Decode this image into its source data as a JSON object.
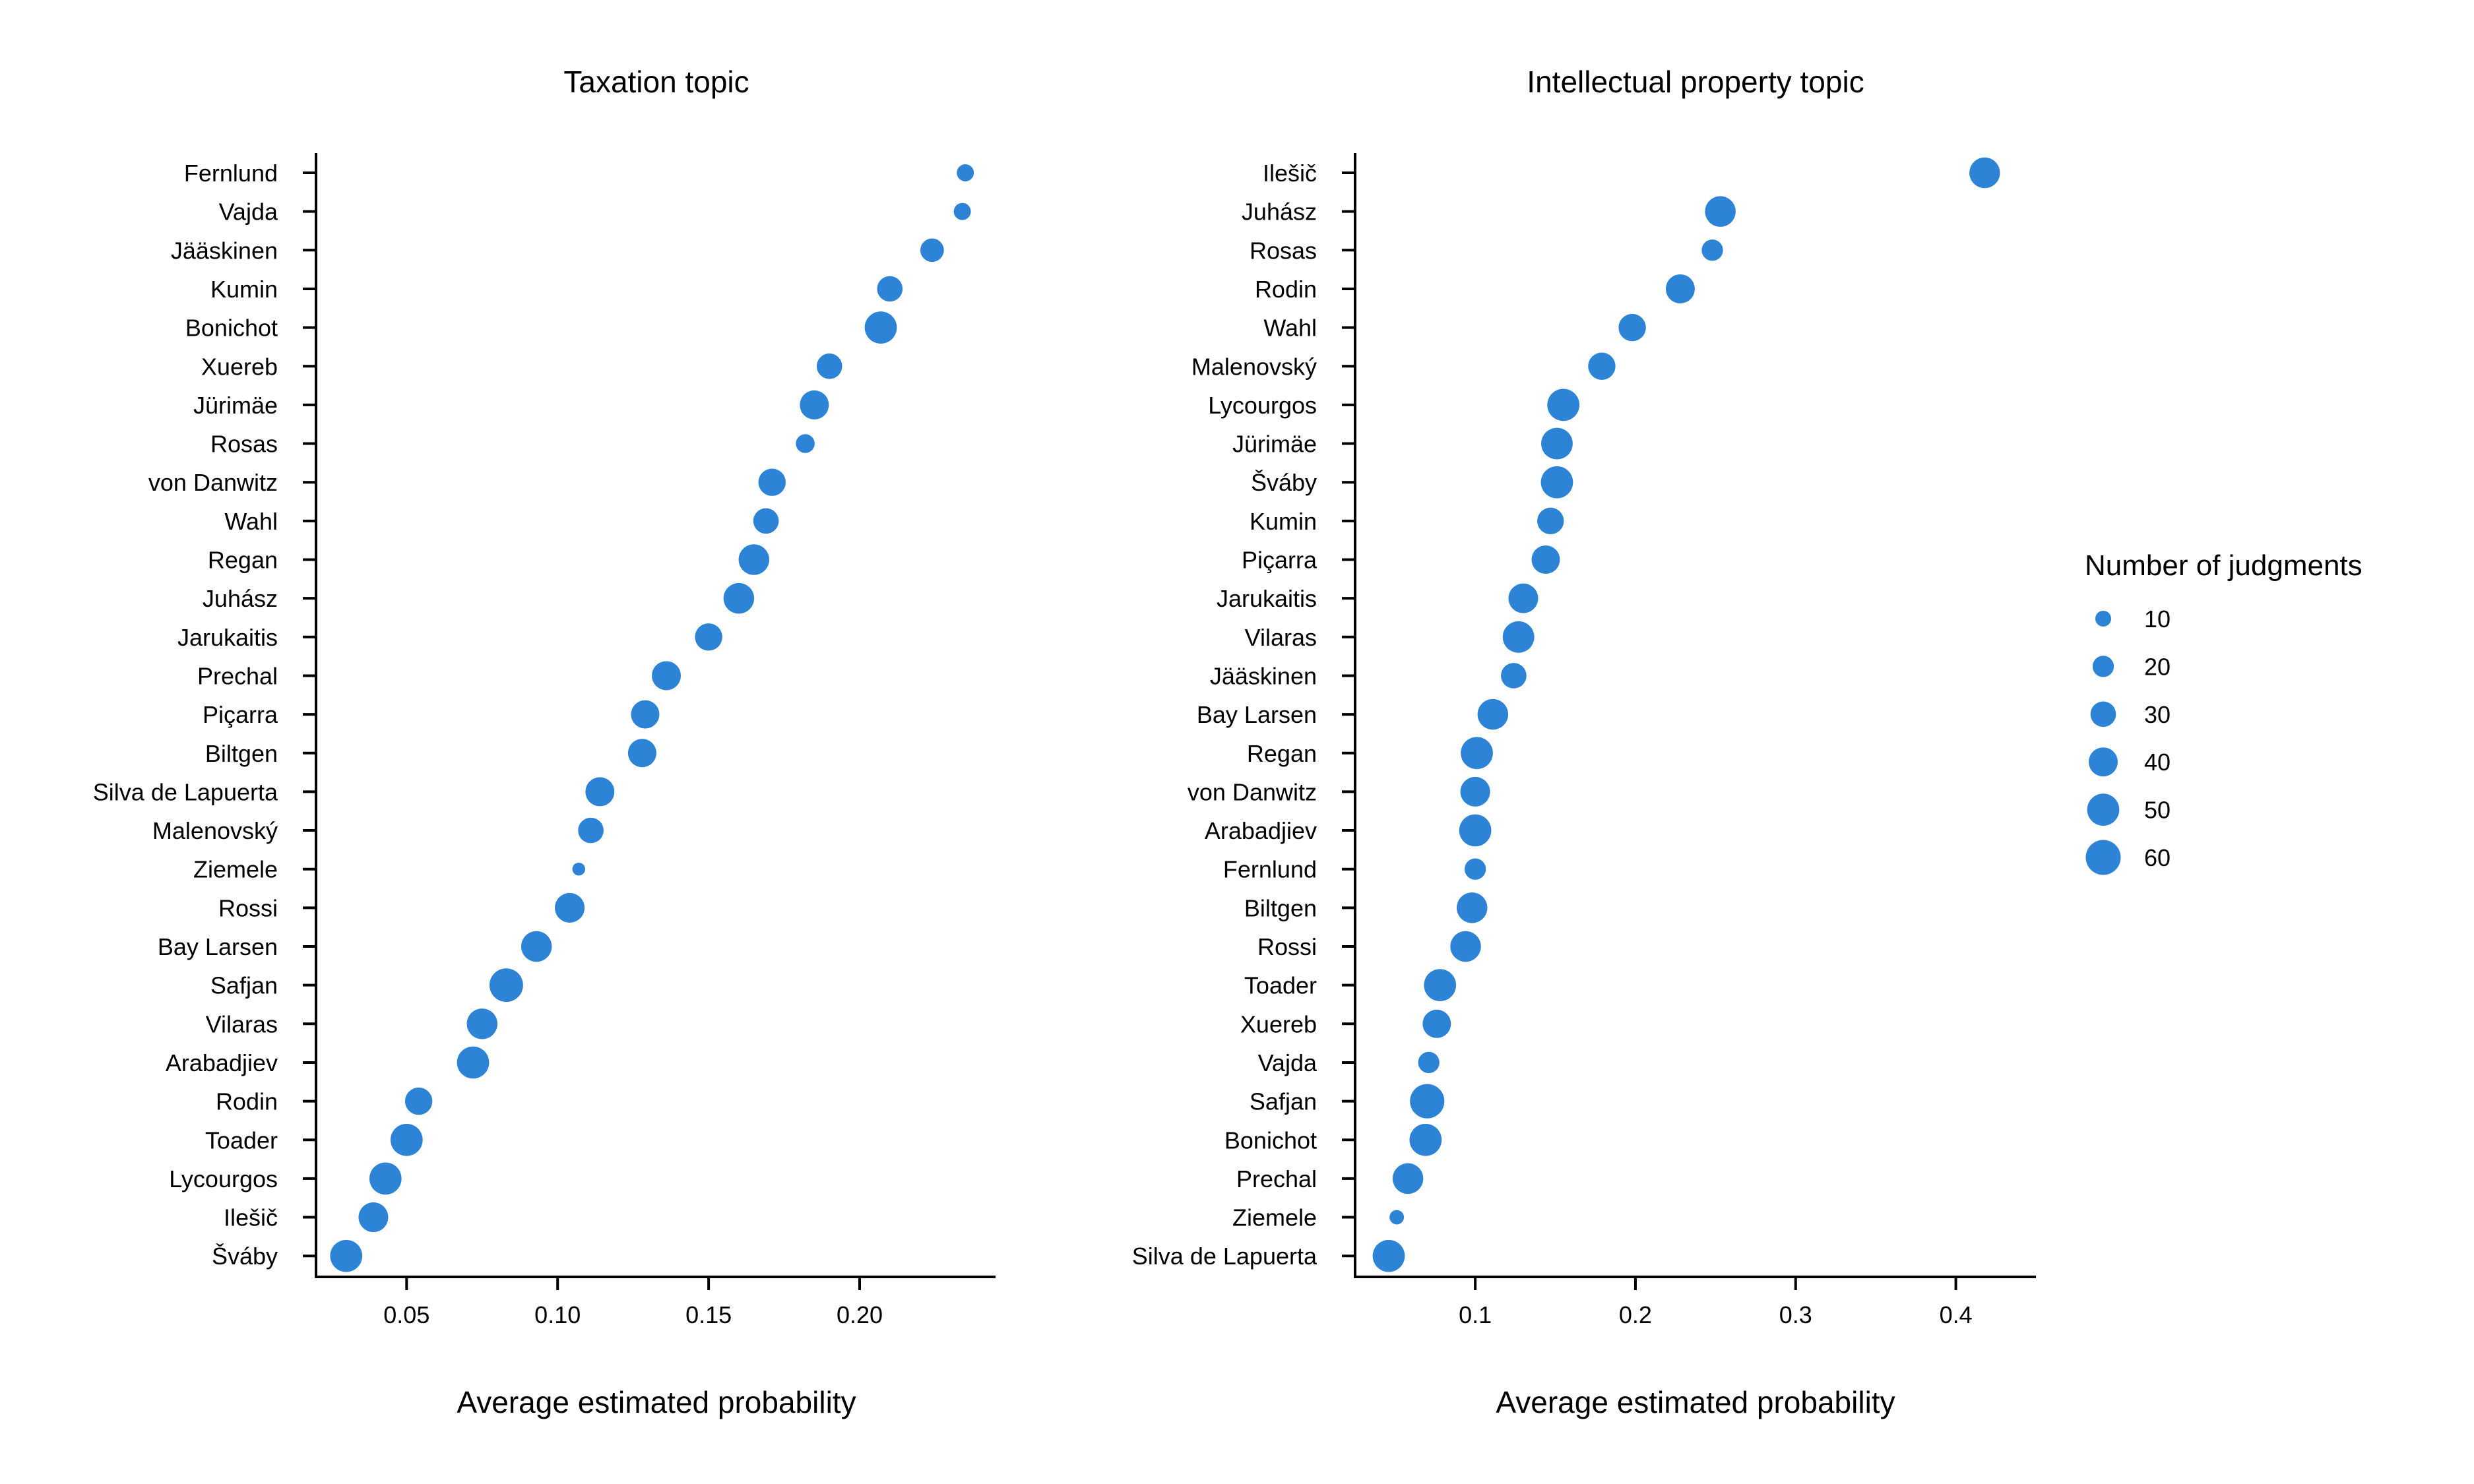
{
  "point_color": "#2d83d6",
  "legend": {
    "title": "Number of judgments",
    "levels": [
      10,
      20,
      30,
      40,
      50,
      60
    ]
  },
  "chart_data": [
    {
      "type": "scatter",
      "title": "Taxation topic",
      "xlabel": "Average estimated probability",
      "ylabel": "",
      "xlim": [
        0.02,
        0.245
      ],
      "xticks": [
        "0.05",
        "0.10",
        "0.15",
        "0.20"
      ],
      "grid": false,
      "points": [
        {
          "judge": "Fernlund",
          "x": 0.235,
          "n": 12
        },
        {
          "judge": "Vajda",
          "x": 0.234,
          "n": 12
        },
        {
          "judge": "Jääskinen",
          "x": 0.224,
          "n": 25
        },
        {
          "judge": "Kumin",
          "x": 0.21,
          "n": 30
        },
        {
          "judge": "Bonichot",
          "x": 0.207,
          "n": 50
        },
        {
          "judge": "Xuereb",
          "x": 0.19,
          "n": 30
        },
        {
          "judge": "Jürimäe",
          "x": 0.185,
          "n": 40
        },
        {
          "judge": "Rosas",
          "x": 0.182,
          "n": 15
        },
        {
          "judge": "von Danwitz",
          "x": 0.171,
          "n": 35
        },
        {
          "judge": "Wahl",
          "x": 0.169,
          "n": 30
        },
        {
          "judge": "Regan",
          "x": 0.165,
          "n": 45
        },
        {
          "judge": "Juhász",
          "x": 0.16,
          "n": 45
        },
        {
          "judge": "Jarukaitis",
          "x": 0.15,
          "n": 35
        },
        {
          "judge": "Prechal",
          "x": 0.136,
          "n": 40
        },
        {
          "judge": "Piçarra",
          "x": 0.129,
          "n": 38
        },
        {
          "judge": "Biltgen",
          "x": 0.128,
          "n": 38
        },
        {
          "judge": "Silva de Lapuerta",
          "x": 0.114,
          "n": 40
        },
        {
          "judge": "Malenovský",
          "x": 0.111,
          "n": 30
        },
        {
          "judge": "Ziemele",
          "x": 0.107,
          "n": 6
        },
        {
          "judge": "Rossi",
          "x": 0.104,
          "n": 42
        },
        {
          "judge": "Bay Larsen",
          "x": 0.093,
          "n": 45
        },
        {
          "judge": "Safjan",
          "x": 0.083,
          "n": 55
        },
        {
          "judge": "Vilaras",
          "x": 0.075,
          "n": 45
        },
        {
          "judge": "Arabadjiev",
          "x": 0.072,
          "n": 50
        },
        {
          "judge": "Rodin",
          "x": 0.054,
          "n": 35
        },
        {
          "judge": "Toader",
          "x": 0.05,
          "n": 50
        },
        {
          "judge": "Lycourgos",
          "x": 0.043,
          "n": 50
        },
        {
          "judge": "Ilešič",
          "x": 0.039,
          "n": 42
        },
        {
          "judge": "Šváby",
          "x": 0.03,
          "n": 50
        }
      ]
    },
    {
      "type": "scatter",
      "title": "Intellectual property topic",
      "xlabel": "Average estimated probability",
      "ylabel": "",
      "xlim": [
        0.025,
        0.45
      ],
      "xticks": [
        "0.1",
        "0.2",
        "0.3",
        "0.4"
      ],
      "grid": false,
      "points": [
        {
          "judge": "Ilešič",
          "x": 0.418,
          "n": 45
        },
        {
          "judge": "Juhász",
          "x": 0.253,
          "n": 45
        },
        {
          "judge": "Rosas",
          "x": 0.248,
          "n": 20
        },
        {
          "judge": "Rodin",
          "x": 0.228,
          "n": 40
        },
        {
          "judge": "Wahl",
          "x": 0.198,
          "n": 35
        },
        {
          "judge": "Malenovský",
          "x": 0.179,
          "n": 35
        },
        {
          "judge": "Lycourgos",
          "x": 0.155,
          "n": 50
        },
        {
          "judge": "Jürimäe",
          "x": 0.151,
          "n": 48
        },
        {
          "judge": "Šváby",
          "x": 0.151,
          "n": 50
        },
        {
          "judge": "Kumin",
          "x": 0.147,
          "n": 33
        },
        {
          "judge": "Piçarra",
          "x": 0.144,
          "n": 38
        },
        {
          "judge": "Jarukaitis",
          "x": 0.13,
          "n": 42
        },
        {
          "judge": "Vilaras",
          "x": 0.127,
          "n": 48
        },
        {
          "judge": "Jääskinen",
          "x": 0.124,
          "n": 30
        },
        {
          "judge": "Bay Larsen",
          "x": 0.111,
          "n": 45
        },
        {
          "judge": "Regan",
          "x": 0.101,
          "n": 50
        },
        {
          "judge": "von Danwitz",
          "x": 0.1,
          "n": 42
        },
        {
          "judge": "Arabadjiev",
          "x": 0.1,
          "n": 50
        },
        {
          "judge": "Fernlund",
          "x": 0.1,
          "n": 20
        },
        {
          "judge": "Biltgen",
          "x": 0.098,
          "n": 45
        },
        {
          "judge": "Rossi",
          "x": 0.094,
          "n": 45
        },
        {
          "judge": "Toader",
          "x": 0.078,
          "n": 50
        },
        {
          "judge": "Xuereb",
          "x": 0.076,
          "n": 38
        },
        {
          "judge": "Vajda",
          "x": 0.071,
          "n": 20
        },
        {
          "judge": "Safjan",
          "x": 0.07,
          "n": 58
        },
        {
          "judge": "Bonichot",
          "x": 0.069,
          "n": 50
        },
        {
          "judge": "Prechal",
          "x": 0.058,
          "n": 45
        },
        {
          "judge": "Ziemele",
          "x": 0.051,
          "n": 8
        },
        {
          "judge": "Silva de Lapuerta",
          "x": 0.046,
          "n": 50
        }
      ]
    }
  ]
}
